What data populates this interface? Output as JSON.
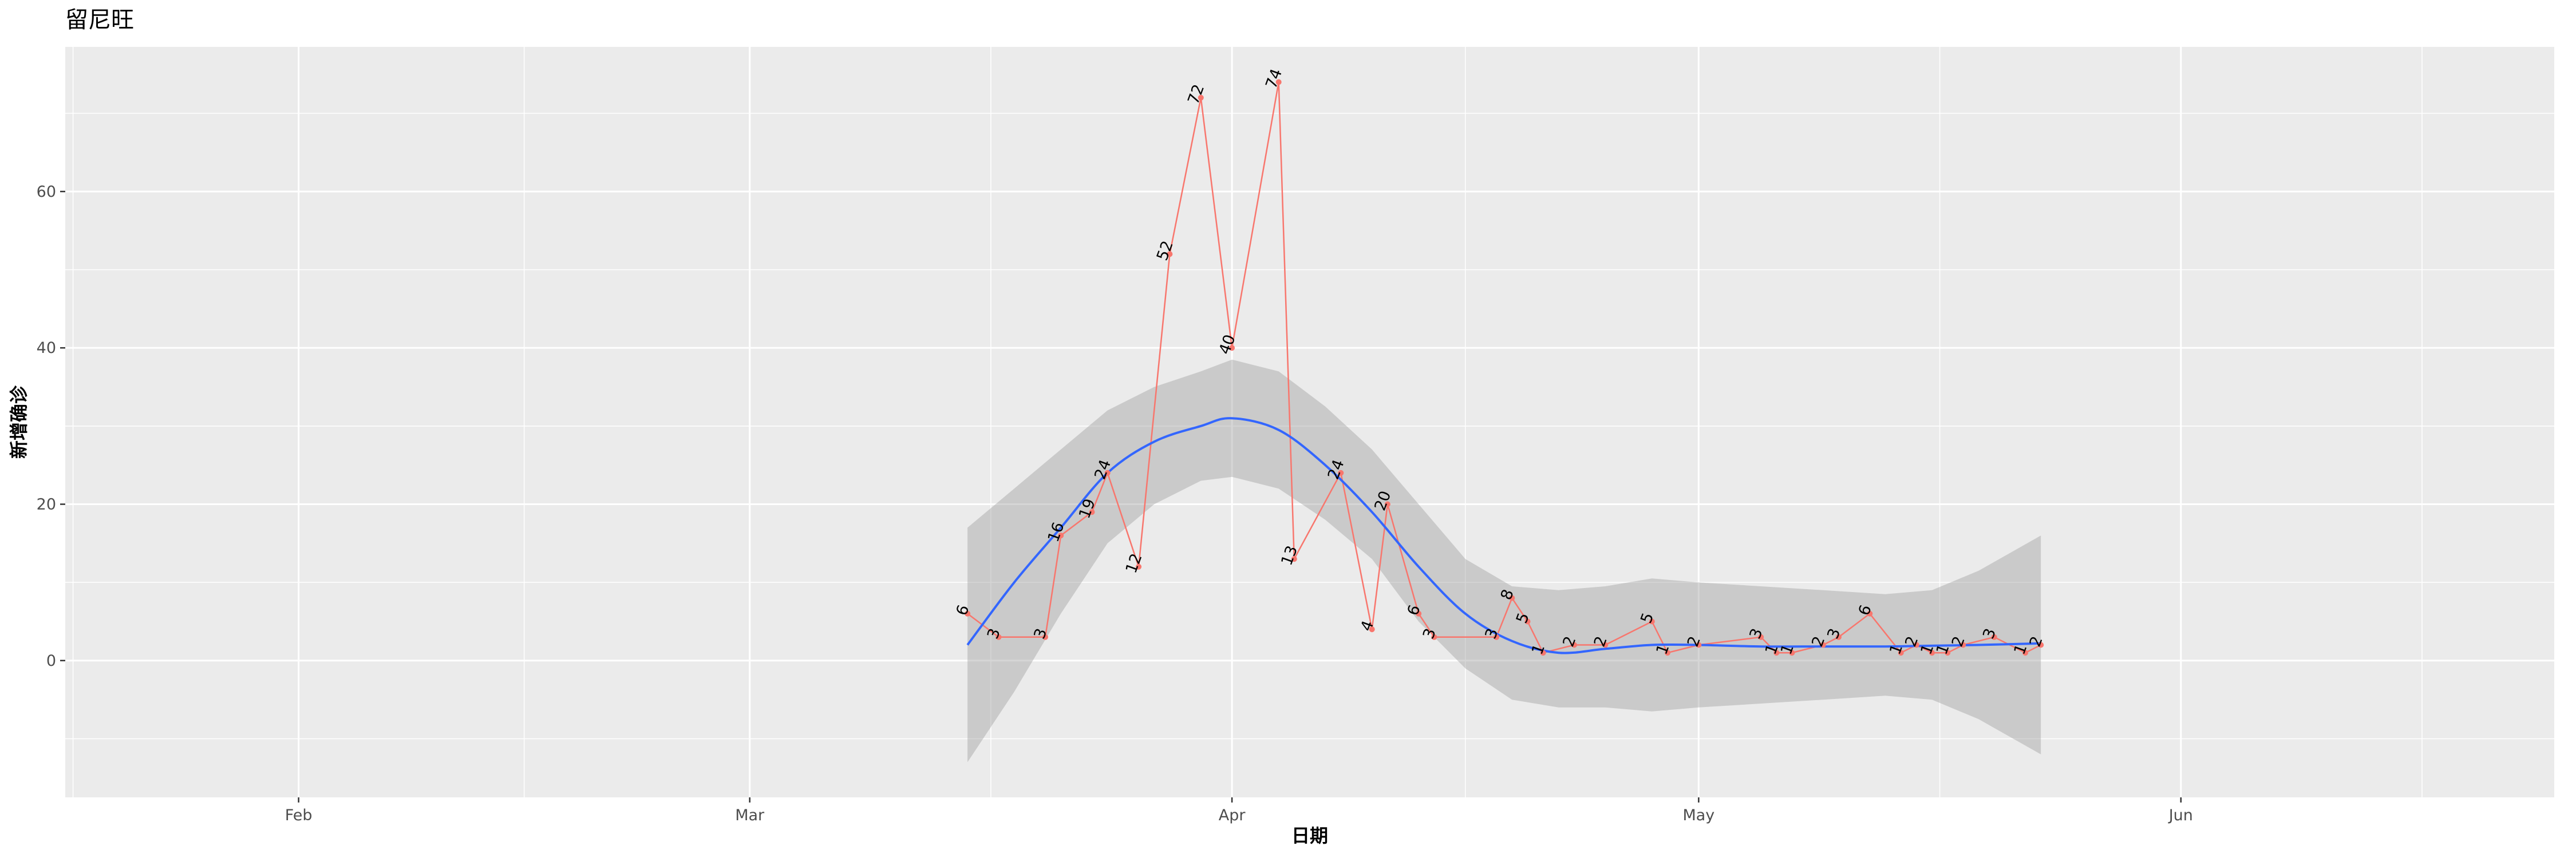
{
  "chart_data": {
    "type": "line",
    "title": "留尼旺",
    "xlabel": "日期",
    "ylabel": "新增确诊",
    "x_ticks": [
      {
        "date": "2020-02-01",
        "label": "Feb"
      },
      {
        "date": "2020-03-01",
        "label": "Mar"
      },
      {
        "date": "2020-04-01",
        "label": "Apr"
      },
      {
        "date": "2020-05-01",
        "label": "May"
      },
      {
        "date": "2020-06-01",
        "label": "Jun"
      }
    ],
    "y_ticks": [
      0,
      20,
      40,
      60
    ],
    "xlim": [
      "2020-01-17",
      "2020-06-25"
    ],
    "ylim": [
      -17.5,
      78.5
    ],
    "grid": true,
    "colors": {
      "panel": "#ebebeb",
      "grid": "#ffffff",
      "line": "#f8766d",
      "smooth": "#3366ff",
      "ribbon": "#999999"
    },
    "series": [
      {
        "points": [
          {
            "x": "2020-03-15",
            "y": 6
          },
          {
            "x": "2020-03-17",
            "y": 3
          },
          {
            "x": "2020-03-20",
            "y": 3
          },
          {
            "x": "2020-03-21",
            "y": 16
          },
          {
            "x": "2020-03-23",
            "y": 19
          },
          {
            "x": "2020-03-24",
            "y": 24
          },
          {
            "x": "2020-03-26",
            "y": 12
          },
          {
            "x": "2020-03-28",
            "y": 52
          },
          {
            "x": "2020-03-30",
            "y": 72
          },
          {
            "x": "2020-04-01",
            "y": 40
          },
          {
            "x": "2020-04-04",
            "y": 74
          },
          {
            "x": "2020-04-05",
            "y": 13
          },
          {
            "x": "2020-04-08",
            "y": 24
          },
          {
            "x": "2020-04-10",
            "y": 4
          },
          {
            "x": "2020-04-11",
            "y": 20
          },
          {
            "x": "2020-04-13",
            "y": 6
          },
          {
            "x": "2020-04-14",
            "y": 3
          },
          {
            "x": "2020-04-18",
            "y": 3
          },
          {
            "x": "2020-04-19",
            "y": 8
          },
          {
            "x": "2020-04-20",
            "y": 5
          },
          {
            "x": "2020-04-21",
            "y": 1
          },
          {
            "x": "2020-04-23",
            "y": 2
          },
          {
            "x": "2020-04-25",
            "y": 2
          },
          {
            "x": "2020-04-28",
            "y": 5
          },
          {
            "x": "2020-04-29",
            "y": 1
          },
          {
            "x": "2020-05-01",
            "y": 2
          },
          {
            "x": "2020-05-05",
            "y": 3
          },
          {
            "x": "2020-05-06",
            "y": 1
          },
          {
            "x": "2020-05-07",
            "y": 1
          },
          {
            "x": "2020-05-09",
            "y": 2
          },
          {
            "x": "2020-05-10",
            "y": 3
          },
          {
            "x": "2020-05-12",
            "y": 6
          },
          {
            "x": "2020-05-14",
            "y": 1
          },
          {
            "x": "2020-05-15",
            "y": 2
          },
          {
            "x": "2020-05-16",
            "y": 1
          },
          {
            "x": "2020-05-17",
            "y": 1
          },
          {
            "x": "2020-05-18",
            "y": 2
          },
          {
            "x": "2020-05-20",
            "y": 3
          },
          {
            "x": "2020-05-22",
            "y": 1
          },
          {
            "x": "2020-05-23",
            "y": 2
          }
        ]
      }
    ],
    "smooth": {
      "points": [
        {
          "x": "2020-03-15",
          "y": 2,
          "lo": -13,
          "hi": 17
        },
        {
          "x": "2020-03-18",
          "y": 10,
          "lo": -4,
          "hi": 22
        },
        {
          "x": "2020-03-21",
          "y": 17,
          "lo": 6,
          "hi": 27
        },
        {
          "x": "2020-03-24",
          "y": 24,
          "lo": 15,
          "hi": 32
        },
        {
          "x": "2020-03-27",
          "y": 28,
          "lo": 20,
          "hi": 35
        },
        {
          "x": "2020-03-30",
          "y": 30,
          "lo": 23,
          "hi": 37
        },
        {
          "x": "2020-04-01",
          "y": 31,
          "lo": 23.5,
          "hi": 38.5
        },
        {
          "x": "2020-04-04",
          "y": 29.5,
          "lo": 22,
          "hi": 37
        },
        {
          "x": "2020-04-07",
          "y": 25,
          "lo": 18,
          "hi": 32.5
        },
        {
          "x": "2020-04-10",
          "y": 19,
          "lo": 13,
          "hi": 27
        },
        {
          "x": "2020-04-13",
          "y": 12,
          "lo": 5,
          "hi": 20
        },
        {
          "x": "2020-04-16",
          "y": 6,
          "lo": -1,
          "hi": 13
        },
        {
          "x": "2020-04-19",
          "y": 2.5,
          "lo": -5,
          "hi": 9.5
        },
        {
          "x": "2020-04-22",
          "y": 1,
          "lo": -6,
          "hi": 9
        },
        {
          "x": "2020-04-25",
          "y": 1.5,
          "lo": -6,
          "hi": 9.5
        },
        {
          "x": "2020-04-28",
          "y": 2,
          "lo": -6.5,
          "hi": 10.5
        },
        {
          "x": "2020-05-01",
          "y": 2,
          "lo": -6,
          "hi": 10
        },
        {
          "x": "2020-05-05",
          "y": 1.8,
          "lo": -5.5,
          "hi": 9.5
        },
        {
          "x": "2020-05-09",
          "y": 1.8,
          "lo": -5,
          "hi": 9
        },
        {
          "x": "2020-05-13",
          "y": 1.8,
          "lo": -4.5,
          "hi": 8.5
        },
        {
          "x": "2020-05-16",
          "y": 1.9,
          "lo": -5,
          "hi": 9
        },
        {
          "x": "2020-05-19",
          "y": 2,
          "lo": -7.5,
          "hi": 11.5
        },
        {
          "x": "2020-05-23",
          "y": 2.2,
          "lo": -12,
          "hi": 16
        }
      ]
    }
  }
}
